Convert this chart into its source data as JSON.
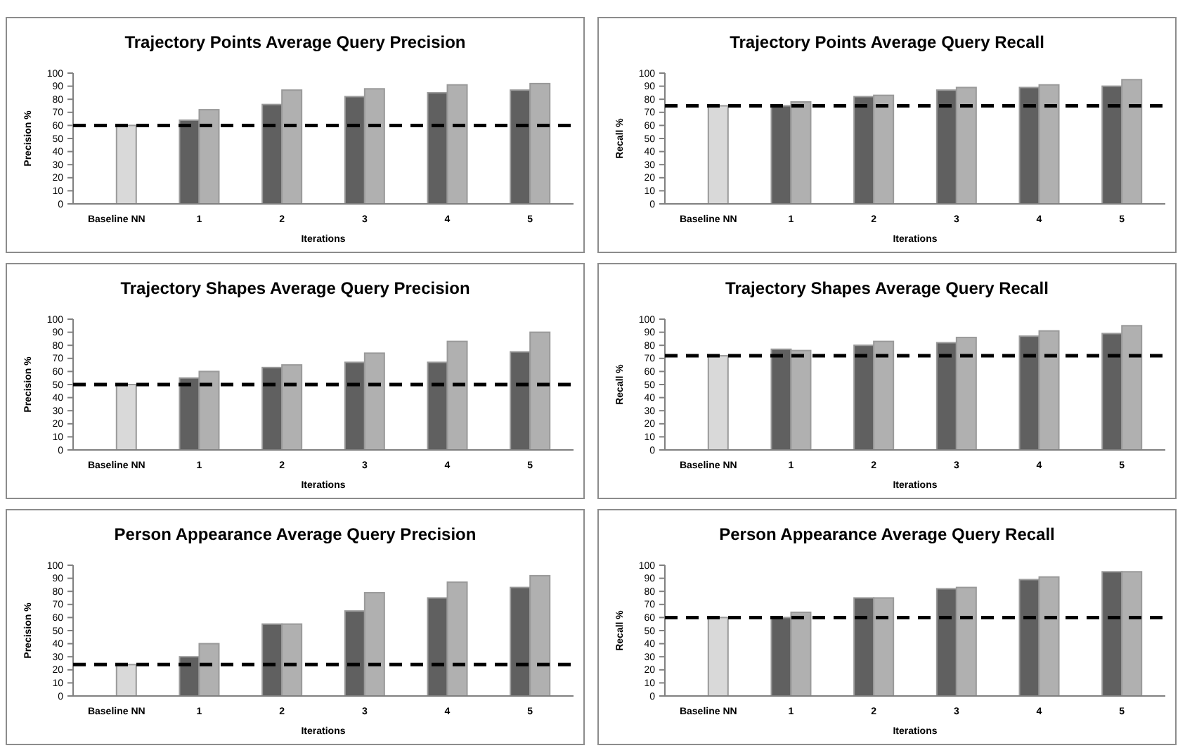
{
  "chart_data": [
    {
      "type": "bar",
      "title": "Trajectory Points Average Query Precision",
      "xlabel": "Iterations",
      "ylabel": "Precision %",
      "categories": [
        "Baseline NN",
        "1",
        "2",
        "3",
        "4",
        "5"
      ],
      "ylim": [
        0,
        100
      ],
      "yticks": [
        0,
        10,
        20,
        30,
        40,
        50,
        60,
        70,
        80,
        90,
        100
      ],
      "grid": false,
      "series": [
        {
          "color": "#606060",
          "values": [
            null,
            64,
            76,
            82,
            85,
            87
          ]
        },
        {
          "color": "#b0b0b0",
          "colors": [
            "#d9d9d9",
            null,
            null,
            null,
            null,
            null
          ],
          "values": [
            60,
            72,
            87,
            88,
            91,
            92
          ]
        }
      ],
      "ref_lines": [
        {
          "axis": "y",
          "value": 60,
          "color": "#000000",
          "line_style": "dashed"
        }
      ]
    },
    {
      "type": "bar",
      "title": "Trajectory Points Average Query Recall",
      "xlabel": "Iterations",
      "ylabel": "Recall %",
      "categories": [
        "Baseline NN",
        "1",
        "2",
        "3",
        "4",
        "5"
      ],
      "ylim": [
        0,
        100
      ],
      "yticks": [
        0,
        10,
        20,
        30,
        40,
        50,
        60,
        70,
        80,
        90,
        100
      ],
      "grid": false,
      "series": [
        {
          "color": "#606060",
          "values": [
            null,
            75,
            82,
            87,
            89,
            90
          ]
        },
        {
          "color": "#b0b0b0",
          "colors": [
            "#d9d9d9",
            null,
            null,
            null,
            null,
            null
          ],
          "values": [
            75,
            78,
            83,
            89,
            91,
            95
          ]
        }
      ],
      "ref_lines": [
        {
          "axis": "y",
          "value": 75,
          "color": "#000000",
          "line_style": "dashed"
        }
      ]
    },
    {
      "type": "bar",
      "title": "Trajectory Shapes Average Query Precision",
      "xlabel": "Iterations",
      "ylabel": "Precision %",
      "categories": [
        "Baseline NN",
        "1",
        "2",
        "3",
        "4",
        "5"
      ],
      "ylim": [
        0,
        100
      ],
      "yticks": [
        0,
        10,
        20,
        30,
        40,
        50,
        60,
        70,
        80,
        90,
        100
      ],
      "grid": false,
      "series": [
        {
          "color": "#606060",
          "values": [
            null,
            55,
            63,
            67,
            67,
            75
          ]
        },
        {
          "color": "#b0b0b0",
          "colors": [
            "#d9d9d9",
            null,
            null,
            null,
            null,
            null
          ],
          "values": [
            50,
            60,
            65,
            74,
            83,
            90
          ]
        }
      ],
      "ref_lines": [
        {
          "axis": "y",
          "value": 50,
          "color": "#000000",
          "line_style": "dashed"
        }
      ]
    },
    {
      "type": "bar",
      "title": "Trajectory Shapes Average Query Recall",
      "xlabel": "Iterations",
      "ylabel": "Recall %",
      "categories": [
        "Baseline NN",
        "1",
        "2",
        "3",
        "4",
        "5"
      ],
      "ylim": [
        0,
        100
      ],
      "yticks": [
        0,
        10,
        20,
        30,
        40,
        50,
        60,
        70,
        80,
        90,
        100
      ],
      "grid": false,
      "series": [
        {
          "color": "#606060",
          "values": [
            null,
            77,
            80,
            82,
            87,
            89
          ]
        },
        {
          "color": "#b0b0b0",
          "colors": [
            "#d9d9d9",
            null,
            null,
            null,
            null,
            null
          ],
          "values": [
            72,
            76,
            83,
            86,
            91,
            95
          ]
        }
      ],
      "ref_lines": [
        {
          "axis": "y",
          "value": 72,
          "color": "#000000",
          "line_style": "dashed"
        }
      ]
    },
    {
      "type": "bar",
      "title": "Person Appearance Average Query Precision",
      "xlabel": "Iterations",
      "ylabel": "Precision %",
      "categories": [
        "Baseline NN",
        "1",
        "2",
        "3",
        "4",
        "5"
      ],
      "ylim": [
        0,
        100
      ],
      "yticks": [
        0,
        10,
        20,
        30,
        40,
        50,
        60,
        70,
        80,
        90,
        100
      ],
      "grid": false,
      "series": [
        {
          "color": "#606060",
          "values": [
            null,
            30,
            55,
            65,
            75,
            83
          ]
        },
        {
          "color": "#b0b0b0",
          "colors": [
            "#d9d9d9",
            null,
            null,
            null,
            null,
            null
          ],
          "values": [
            24,
            40,
            55,
            79,
            87,
            92
          ]
        }
      ],
      "ref_lines": [
        {
          "axis": "y",
          "value": 24,
          "color": "#000000",
          "line_style": "dashed"
        }
      ]
    },
    {
      "type": "bar",
      "title": "Person Appearance Average Query Recall",
      "xlabel": "Iterations",
      "ylabel": "Recall %",
      "categories": [
        "Baseline NN",
        "1",
        "2",
        "3",
        "4",
        "5"
      ],
      "ylim": [
        0,
        100
      ],
      "yticks": [
        0,
        10,
        20,
        30,
        40,
        50,
        60,
        70,
        80,
        90,
        100
      ],
      "grid": false,
      "series": [
        {
          "color": "#606060",
          "values": [
            null,
            60,
            75,
            82,
            89,
            95
          ]
        },
        {
          "color": "#b0b0b0",
          "colors": [
            "#d9d9d9",
            null,
            null,
            null,
            null,
            null
          ],
          "values": [
            60,
            64,
            75,
            83,
            91,
            95
          ]
        }
      ],
      "ref_lines": [
        {
          "axis": "y",
          "value": 60,
          "color": "#000000",
          "line_style": "dashed"
        }
      ]
    }
  ]
}
